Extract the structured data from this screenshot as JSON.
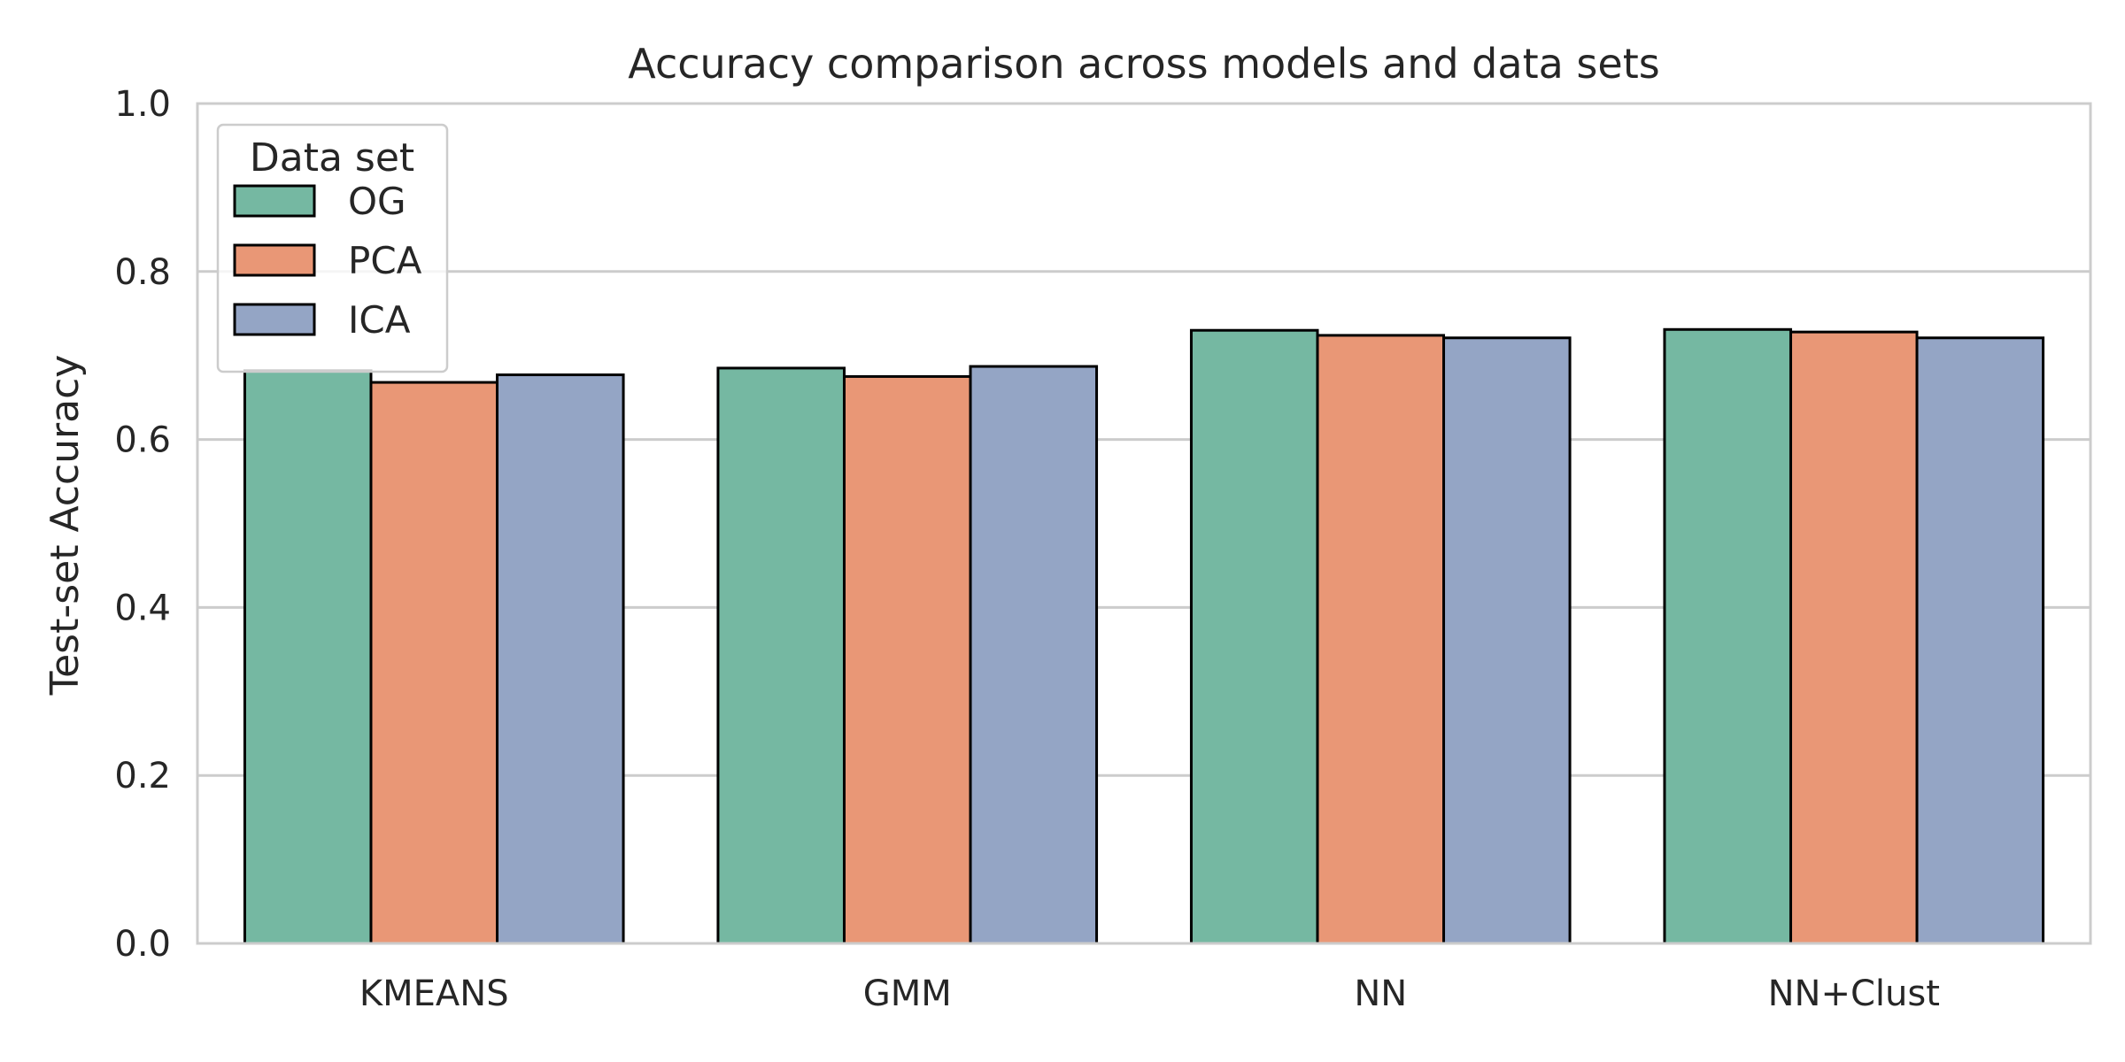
{
  "chart_data": {
    "type": "bar",
    "title": "Accuracy comparison across models and data sets",
    "xlabel": "",
    "ylabel": "Test-set Accuracy",
    "categories": [
      "KMEANS",
      "GMM",
      "NN",
      "NN+Clust"
    ],
    "series": [
      {
        "name": "OG",
        "color": "#75b8a2",
        "values": [
          0.682,
          0.685,
          0.73,
          0.731
        ]
      },
      {
        "name": "PCA",
        "color": "#e99776",
        "values": [
          0.668,
          0.675,
          0.724,
          0.728
        ]
      },
      {
        "name": "ICA",
        "color": "#94a5c5",
        "values": [
          0.677,
          0.687,
          0.721,
          0.721
        ]
      }
    ],
    "ylim": [
      0,
      1.0
    ],
    "yticks": [
      "0.0",
      "0.2",
      "0.4",
      "0.6",
      "0.8",
      "1.0"
    ],
    "grid": "horizontal",
    "legend": {
      "title": "Data set",
      "placement": "upper-left"
    }
  }
}
